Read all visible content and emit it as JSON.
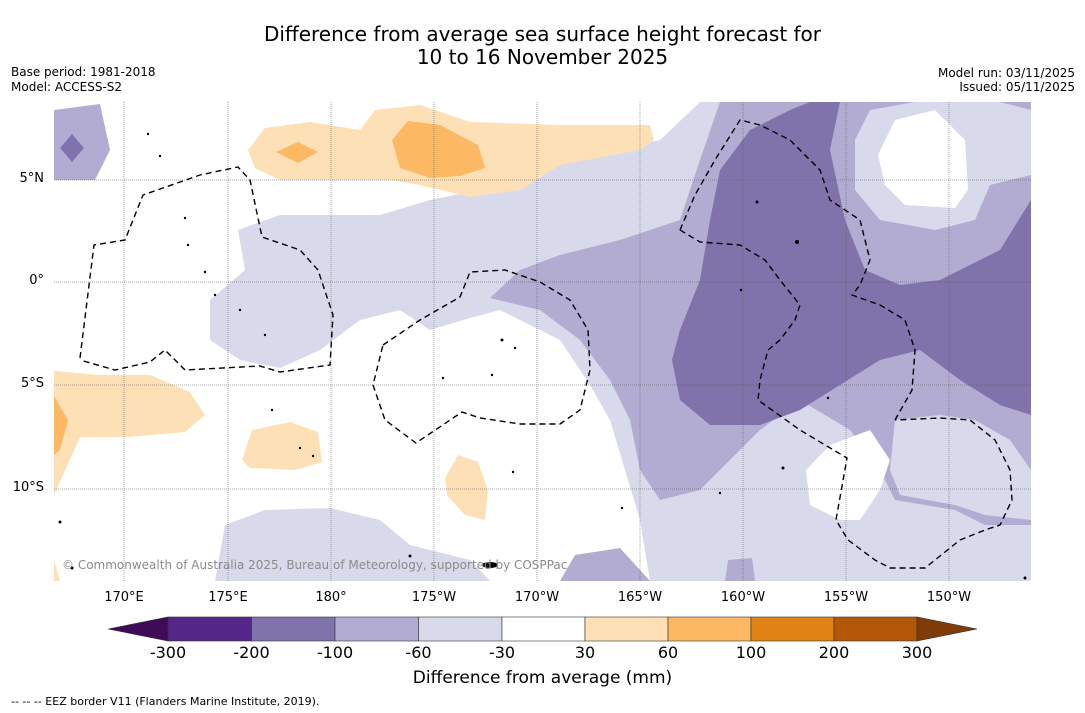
{
  "title": {
    "line1": "Difference from average sea surface height forecast for",
    "line2": "10 to 16 November 2025"
  },
  "meta_left": {
    "base_period": "Base period: 1981-2018",
    "model": "Model: ACCESS-S2"
  },
  "meta_right": {
    "model_run": "Model run: 03/11/2025",
    "issued": "Issued: 05/11/2025"
  },
  "map": {
    "lat_labels": [
      "5°N",
      "0°",
      "5°S",
      "10°S"
    ],
    "lon_labels": [
      "170°E",
      "175°E",
      "180°",
      "175°W",
      "170°W",
      "165°W",
      "160°W",
      "155°W",
      "150°W"
    ],
    "copyright": "© Commonwealth of Australia 2025, Bureau of Meteorology, supported by COSPPac"
  },
  "colorbar": {
    "title": "Difference from average (mm)",
    "ticks": [
      "-300",
      "-200",
      "-100",
      "-60",
      "-30",
      "30",
      "60",
      "100",
      "200",
      "300"
    ],
    "colors": {
      "under": "#3f0a57",
      "c1": "#542788",
      "c2": "#8073ac",
      "c3": "#b2abd2",
      "c4": "#d8daeb",
      "c5": "#ffffff",
      "c6": "#fee0b6",
      "c7": "#fdb863",
      "c8": "#e08214",
      "c9": "#b35806",
      "over": "#7f3b08"
    }
  },
  "eez_legend": "--  --  -- EEZ border V11 (Flanders Marine Institute, 2019)."
}
